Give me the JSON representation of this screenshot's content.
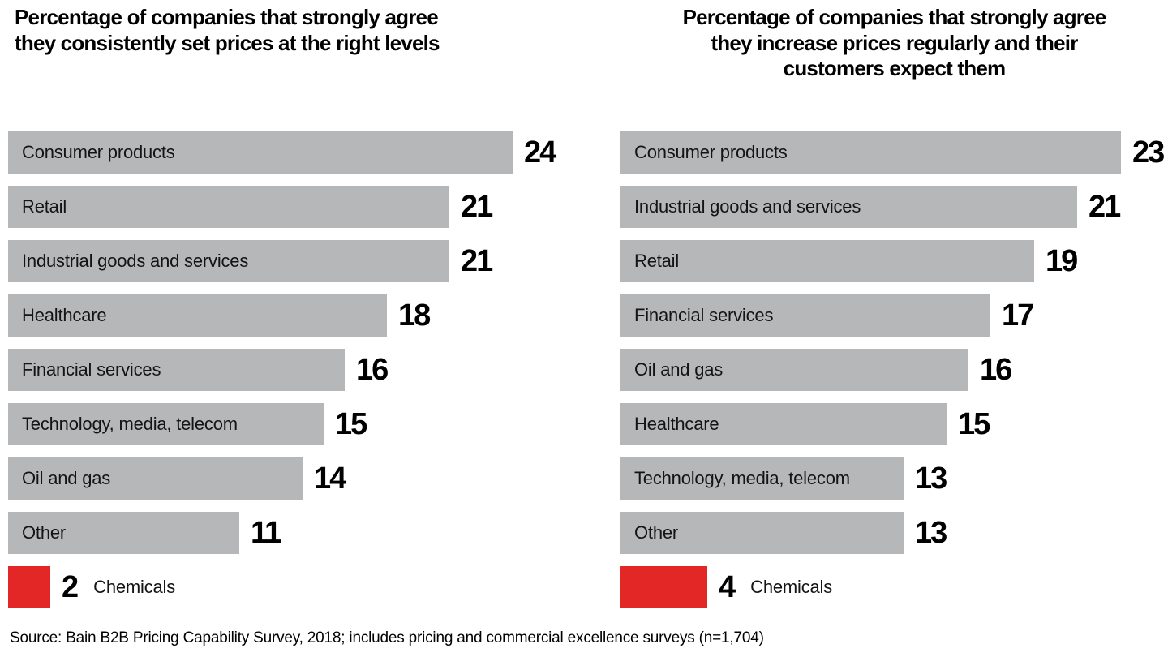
{
  "chart_data": [
    {
      "type": "bar",
      "orientation": "horizontal",
      "title": "Percentage of companies that strongly agree they consistently set prices at the right levels",
      "title_lines": [
        "Percentage of companies that strongly agree",
        "they consistently set prices at the right levels"
      ],
      "categories": [
        "Consumer products",
        "Retail",
        "Industrial goods and services",
        "Healthcare",
        "Financial services",
        "Technology, media, telecom",
        "Oil and gas",
        "Other",
        "Chemicals"
      ],
      "values": [
        24,
        21,
        21,
        18,
        16,
        15,
        14,
        11,
        2
      ],
      "highlight_category": "Chemicals",
      "bar_color": "#b6b7b9",
      "highlight_color": "#e32726",
      "value_labels_shown": true,
      "axis_shown": false,
      "xlim": [
        0,
        24
      ]
    },
    {
      "type": "bar",
      "orientation": "horizontal",
      "title": "Percentage of companies that strongly agree they increase prices regularly and their customers expect them",
      "title_lines": [
        "Percentage of companies that strongly agree",
        "they increase prices regularly and their",
        "customers expect them"
      ],
      "categories": [
        "Consumer products",
        "Industrial goods and services",
        "Retail",
        "Financial services",
        "Oil and gas",
        "Healthcare",
        "Technology, media, telecom",
        "Other",
        "Chemicals"
      ],
      "values": [
        23,
        21,
        19,
        17,
        16,
        15,
        13,
        13,
        4
      ],
      "highlight_category": "Chemicals",
      "bar_color": "#b6b7b9",
      "highlight_color": "#e32726",
      "value_labels_shown": true,
      "axis_shown": false,
      "xlim": [
        0,
        23
      ]
    }
  ],
  "source": "Source: Bain B2B Pricing Capability Survey, 2018; includes pricing and commercial excellence surveys (n=1,704)"
}
